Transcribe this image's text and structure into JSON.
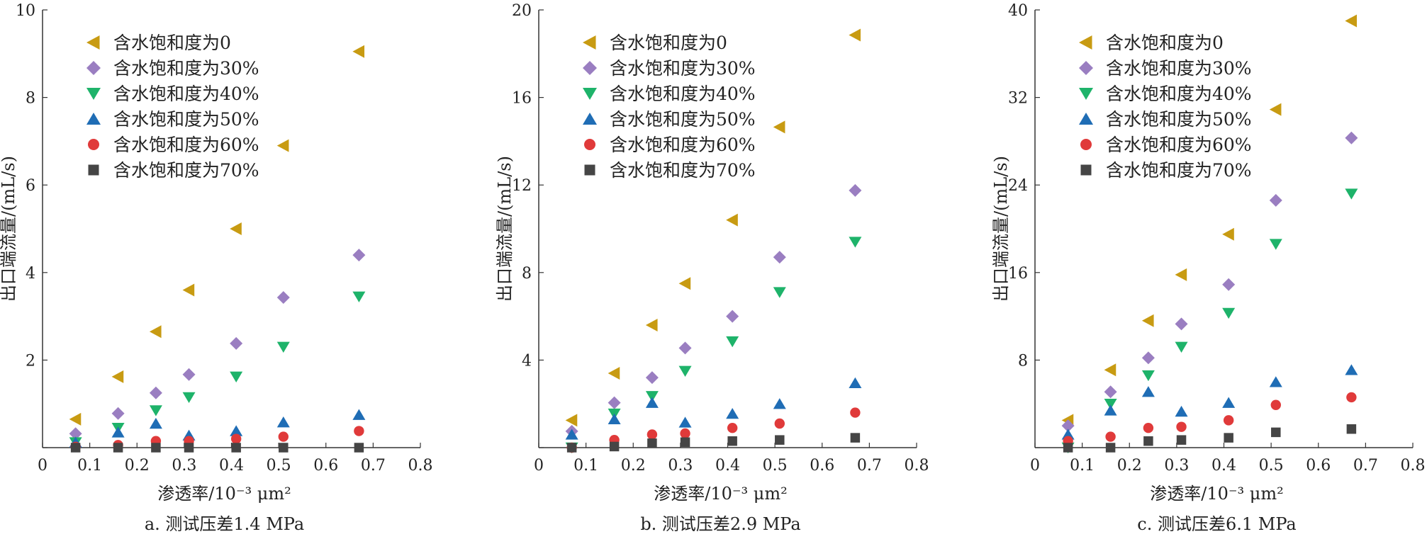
{
  "colors": {
    "s0": "#C89B12",
    "s30": "#9A7EC1",
    "s40": "#1EB36A",
    "s50": "#1F6DB5",
    "s60": "#E03A3A",
    "s70": "#454545",
    "axis": "#333333"
  },
  "chart_data": [
    {
      "type": "scatter",
      "title": "",
      "caption": "a. 测试压差1.4 MPa",
      "xlabel": "渗透率/10⁻³ μm²",
      "ylabel": "出口端流量/(mL/s)",
      "xlim": [
        0,
        0.8
      ],
      "ylim": [
        0,
        10
      ],
      "xticks": [
        0,
        0.1,
        0.2,
        0.3,
        0.4,
        0.5,
        0.6,
        0.7,
        0.8
      ],
      "xtick_labels": [
        "0",
        "0.1",
        "0.2",
        "0.3",
        "0.4",
        "0.5",
        "0.6",
        "0.7",
        "0.8"
      ],
      "yticks": [
        0,
        2,
        4,
        6,
        8,
        10
      ],
      "ytick_labels": [
        "0",
        "2",
        "4",
        "6",
        "8",
        "10"
      ],
      "legend_position": "top-left",
      "x": [
        0.07,
        0.16,
        0.24,
        0.31,
        0.41,
        0.51,
        0.67
      ],
      "series": [
        {
          "name": "含水饱和度为0",
          "marker": "triangle-left",
          "color_key": "s0",
          "values": [
            0.65,
            1.62,
            2.65,
            3.6,
            5.0,
            6.9,
            9.05
          ]
        },
        {
          "name": "含水饱和度为30%",
          "marker": "diamond",
          "color_key": "s30",
          "values": [
            0.32,
            0.78,
            1.25,
            1.67,
            2.38,
            3.43,
            4.4
          ]
        },
        {
          "name": "含水饱和度为40%",
          "marker": "triangle-down",
          "color_key": "s40",
          "values": [
            0.12,
            0.45,
            0.85,
            1.15,
            1.62,
            2.3,
            3.45
          ]
        },
        {
          "name": "含水饱和度为50%",
          "marker": "triangle-up",
          "color_key": "s50",
          "values": [
            0.12,
            0.35,
            0.55,
            0.28,
            0.38,
            0.58,
            0.75
          ]
        },
        {
          "name": "含水饱和度为60%",
          "marker": "circle",
          "color_key": "s60",
          "values": [
            0.02,
            0.06,
            0.15,
            0.15,
            0.2,
            0.25,
            0.38
          ]
        },
        {
          "name": "含水饱和度为70%",
          "marker": "square",
          "color_key": "s70",
          "values": [
            0.0,
            0.0,
            0.0,
            0.0,
            0.0,
            0.0,
            0.0
          ]
        }
      ]
    },
    {
      "type": "scatter",
      "title": "",
      "caption": "b. 测试压差2.9 MPa",
      "xlabel": "渗透率/10⁻³ μm²",
      "ylabel": "出口端流量/(mL/s)",
      "xlim": [
        0,
        0.8
      ],
      "ylim": [
        0,
        20
      ],
      "xticks": [
        0,
        0.1,
        0.2,
        0.3,
        0.4,
        0.5,
        0.6,
        0.7,
        0.8
      ],
      "xtick_labels": [
        "0",
        "0.1",
        "0.2",
        "0.3",
        "0.4",
        "0.5",
        "0.6",
        "0.7",
        "0.8"
      ],
      "yticks": [
        0,
        4,
        8,
        12,
        16,
        20
      ],
      "ytick_labels": [
        "0",
        "4",
        "8",
        "12",
        "16",
        "20"
      ],
      "legend_position": "top-left",
      "x": [
        0.07,
        0.16,
        0.24,
        0.31,
        0.41,
        0.51,
        0.67
      ],
      "series": [
        {
          "name": "含水饱和度为0",
          "marker": "triangle-left",
          "color_key": "s0",
          "values": [
            1.25,
            3.4,
            5.6,
            7.5,
            10.4,
            14.65,
            18.85
          ]
        },
        {
          "name": "含水饱和度为30%",
          "marker": "diamond",
          "color_key": "s30",
          "values": [
            0.75,
            2.05,
            3.2,
            4.55,
            6.0,
            8.7,
            11.75
          ]
        },
        {
          "name": "含水饱和度为40%",
          "marker": "triangle-down",
          "color_key": "s40",
          "values": [
            0.0,
            1.55,
            2.35,
            3.5,
            4.85,
            7.1,
            9.4
          ]
        },
        {
          "name": "含水饱和度为50%",
          "marker": "triangle-up",
          "color_key": "s50",
          "values": [
            0.6,
            1.3,
            2.05,
            1.15,
            1.55,
            2.0,
            2.95
          ]
        },
        {
          "name": "含水饱和度为60%",
          "marker": "circle",
          "color_key": "s60",
          "values": [
            0.0,
            0.35,
            0.6,
            0.65,
            0.9,
            1.1,
            1.6
          ]
        },
        {
          "name": "含水饱和度为70%",
          "marker": "square",
          "color_key": "s70",
          "values": [
            0.0,
            0.05,
            0.2,
            0.25,
            0.3,
            0.35,
            0.45
          ]
        }
      ]
    },
    {
      "type": "scatter",
      "title": "",
      "caption": "c. 测试压差6.1 MPa",
      "xlabel": "渗透率/10⁻³ μm²",
      "ylabel": "出口端流量/(mL/s)",
      "xlim": [
        0,
        0.8
      ],
      "ylim": [
        0,
        40
      ],
      "xticks": [
        0,
        0.1,
        0.2,
        0.3,
        0.4,
        0.5,
        0.6,
        0.7,
        0.8
      ],
      "xtick_labels": [
        "0",
        "0.1",
        "0.2",
        "0.3",
        "0.4",
        "0.5",
        "0.6",
        "0.7",
        "0.8"
      ],
      "yticks": [
        0,
        8,
        16,
        24,
        32,
        40
      ],
      "ytick_labels": [
        "0",
        "8",
        "16",
        "24",
        "32",
        "40"
      ],
      "legend_position": "top-left",
      "x": [
        0.07,
        0.16,
        0.24,
        0.31,
        0.41,
        0.51,
        0.67
      ],
      "series": [
        {
          "name": "含水饱和度为0",
          "marker": "triangle-left",
          "color_key": "s0",
          "values": [
            2.5,
            7.1,
            11.6,
            15.8,
            19.5,
            30.9,
            39.0
          ]
        },
        {
          "name": "含水饱和度为30%",
          "marker": "diamond",
          "color_key": "s30",
          "values": [
            2.0,
            5.1,
            8.2,
            11.3,
            14.9,
            22.6,
            28.3
          ]
        },
        {
          "name": "含水饱和度为40%",
          "marker": "triangle-down",
          "color_key": "s40",
          "values": [
            0.0,
            4.0,
            6.6,
            9.2,
            12.3,
            18.6,
            23.2
          ]
        },
        {
          "name": "含水饱和度为50%",
          "marker": "triangle-up",
          "color_key": "s50",
          "values": [
            1.2,
            3.4,
            5.1,
            3.3,
            4.1,
            6.0,
            7.1
          ]
        },
        {
          "name": "含水饱和度为60%",
          "marker": "circle",
          "color_key": "s60",
          "values": [
            0.6,
            1.0,
            1.8,
            1.9,
            2.5,
            3.9,
            4.6
          ]
        },
        {
          "name": "含水饱和度为70%",
          "marker": "square",
          "color_key": "s70",
          "values": [
            0.0,
            0.0,
            0.6,
            0.7,
            0.9,
            1.4,
            1.7
          ]
        }
      ]
    }
  ]
}
